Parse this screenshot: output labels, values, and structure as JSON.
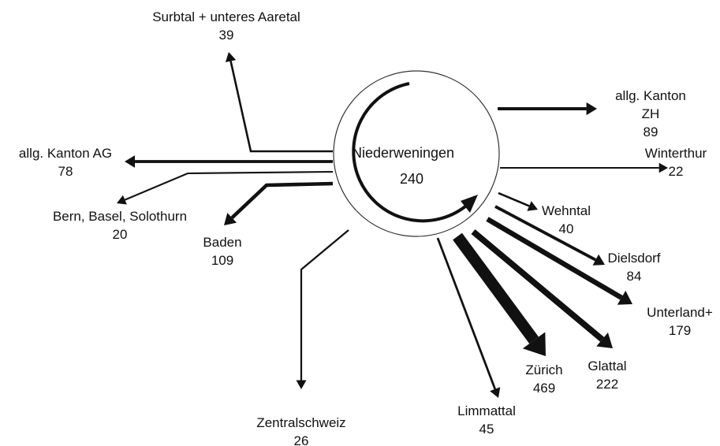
{
  "center": {
    "label": "Niederweningen",
    "value": 240
  },
  "flows": [
    {
      "label": "Surbtal + unteres Aaretal",
      "value": 39
    },
    {
      "label": "allg. Kanton AG",
      "value": 78
    },
    {
      "label": "Bern, Basel, Solothurn",
      "value": 20
    },
    {
      "label": "Baden",
      "value": 109
    },
    {
      "label": "Zentralschweiz",
      "value": 26
    },
    {
      "label": "Limmattal",
      "value": 45
    },
    {
      "label": "Zürich",
      "value": 469
    },
    {
      "label": "Glattal",
      "value": 222
    },
    {
      "label": "Unterland+",
      "value": 179
    },
    {
      "label": "Dielsdorf",
      "value": 84
    },
    {
      "label": "Wehntal",
      "value": 40
    },
    {
      "label": "Winterthur",
      "value": 22
    },
    {
      "label": "allg. Kanton ZH",
      "value": 89
    }
  ]
}
